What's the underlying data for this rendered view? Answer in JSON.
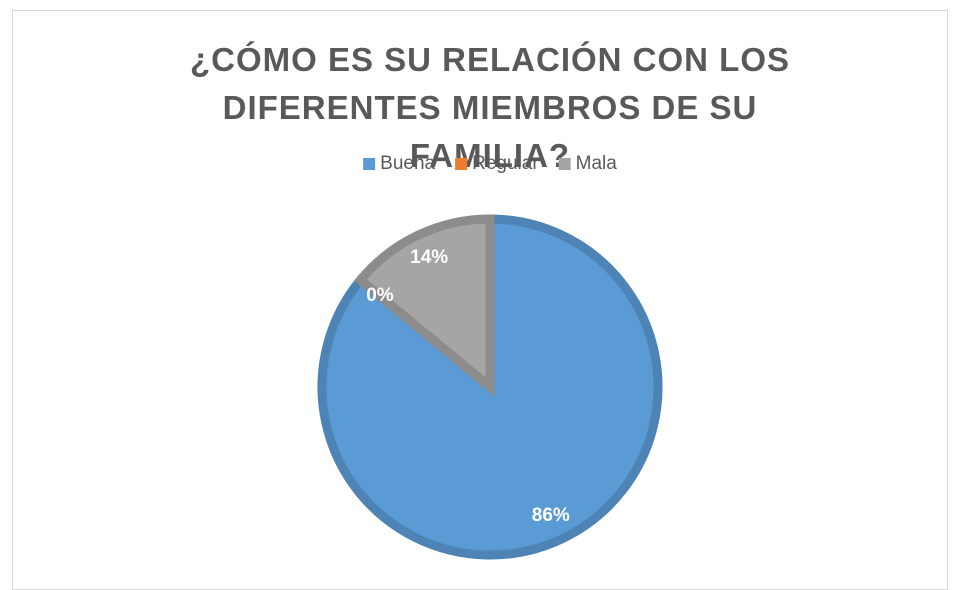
{
  "chart_data": {
    "type": "pie",
    "title": "¿CÓMO ES SU RELACIÓN CON LOS DIFERENTES MIEMBROS DE SU FAMILIA?",
    "categories": [
      "Buena",
      "Regular",
      "Mala"
    ],
    "values": [
      86,
      0,
      14
    ],
    "value_labels": [
      "86%",
      "0%",
      "14%"
    ],
    "colors": [
      "#5b9bd5",
      "#ed7d31",
      "#a5a5a5"
    ],
    "legend": "top"
  }
}
